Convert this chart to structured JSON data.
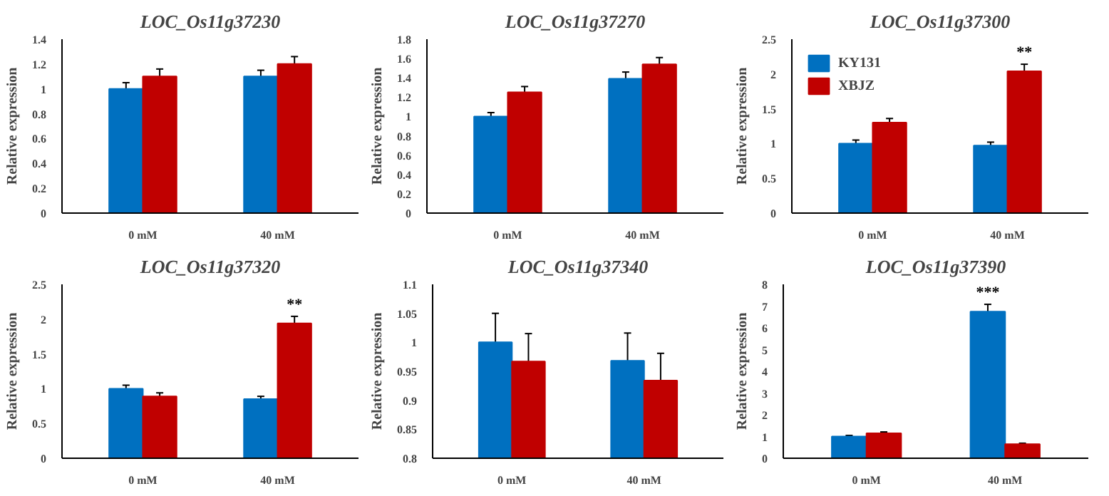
{
  "chart_data": [
    {
      "type": "bar",
      "title": "LOC_Os11g37230",
      "ylabel": "Relative expression",
      "categories": [
        "0 mM",
        "40 mM"
      ],
      "ylim": [
        0,
        1.4
      ],
      "yticks": [
        0,
        0.2,
        0.4,
        0.6,
        0.8,
        1,
        1.2,
        1.4
      ],
      "grid": false,
      "legend": false,
      "series": [
        {
          "color": "#0070c0",
          "values": [
            1,
            1.1
          ],
          "errors": [
            0.05,
            0.05
          ]
        },
        {
          "color": "#c00000",
          "values": [
            1.1,
            1.2
          ],
          "errors": [
            0.06,
            0.06
          ]
        }
      ]
    },
    {
      "type": "bar",
      "title": "LOC_Os11g37270",
      "ylabel": "Relative expression",
      "categories": [
        "0 mM",
        "40 mM"
      ],
      "ylim": [
        0,
        1.8
      ],
      "yticks": [
        0,
        0.2,
        0.4,
        0.6,
        0.8,
        1,
        1.2,
        1.4,
        1.6,
        1.8
      ],
      "grid": false,
      "legend": false,
      "series": [
        {
          "color": "#0070c0",
          "values": [
            1,
            1.39
          ],
          "errors": [
            0.04,
            0.07
          ]
        },
        {
          "color": "#c00000",
          "values": [
            1.25,
            1.54
          ],
          "errors": [
            0.06,
            0.07
          ]
        }
      ]
    },
    {
      "type": "bar",
      "title": "LOC_Os11g37300",
      "ylabel": "Relative expression",
      "categories": [
        "0 mM",
        "40 mM"
      ],
      "ylim": [
        0,
        2.5
      ],
      "yticks": [
        0,
        0.5,
        1,
        1.5,
        2,
        2.5
      ],
      "grid": false,
      "legend": "top left",
      "annotations": [
        {
          "text": "**",
          "x": "40 mM",
          "y": 2.04
        }
      ],
      "series": [
        {
          "name": "KY131",
          "color": "#0070c0",
          "values": [
            1,
            0.97
          ],
          "errors": [
            0.05,
            0.05
          ]
        },
        {
          "name": "XBJZ",
          "color": "#c00000",
          "values": [
            1.3,
            2.04
          ],
          "errors": [
            0.06,
            0.1
          ]
        }
      ]
    },
    {
      "type": "bar",
      "title": "LOC_Os11g37320",
      "ylabel": "Relative expression",
      "categories": [
        "0 mM",
        "40 mM"
      ],
      "ylim": [
        0,
        2.5
      ],
      "yticks": [
        0,
        0.5,
        1,
        1.5,
        2,
        2.5
      ],
      "grid": false,
      "legend": false,
      "annotations": [
        {
          "text": "**",
          "x": "40 mM",
          "y": 1.94
        }
      ],
      "series": [
        {
          "color": "#0070c0",
          "values": [
            1,
            0.85
          ],
          "errors": [
            0.05,
            0.04
          ]
        },
        {
          "color": "#c00000",
          "values": [
            0.89,
            1.94
          ],
          "errors": [
            0.05,
            0.1
          ]
        }
      ]
    },
    {
      "type": "bar",
      "title": "LOC_Os11g37340",
      "ylabel": "Relative expression",
      "categories": [
        "0 mM",
        "40 mM"
      ],
      "ylim": [
        0.8,
        1.1
      ],
      "yticks": [
        0.8,
        0.85,
        0.9,
        0.95,
        1,
        1.05,
        1.1
      ],
      "grid": false,
      "legend": false,
      "series": [
        {
          "color": "#0070c0",
          "values": [
            1,
            0.968
          ],
          "errors": [
            0.05,
            0.048
          ]
        },
        {
          "color": "#c00000",
          "values": [
            0.967,
            0.934
          ],
          "errors": [
            0.048,
            0.047
          ]
        }
      ]
    },
    {
      "type": "bar",
      "title": "LOC_Os11g37390",
      "ylabel": "Relative expression",
      "categories": [
        "0 mM",
        "40 mM"
      ],
      "ylim": [
        0,
        8
      ],
      "yticks": [
        0,
        1,
        2,
        3,
        4,
        5,
        6,
        7,
        8
      ],
      "grid": false,
      "legend": false,
      "annotations": [
        {
          "text": "***",
          "x": "40 mM",
          "y": 6.75
        }
      ],
      "series": [
        {
          "color": "#0070c0",
          "values": [
            1,
            6.75
          ],
          "errors": [
            0.05,
            0.33
          ]
        },
        {
          "color": "#c00000",
          "values": [
            1.15,
            0.65
          ],
          "errors": [
            0.06,
            0.04
          ]
        }
      ]
    }
  ]
}
